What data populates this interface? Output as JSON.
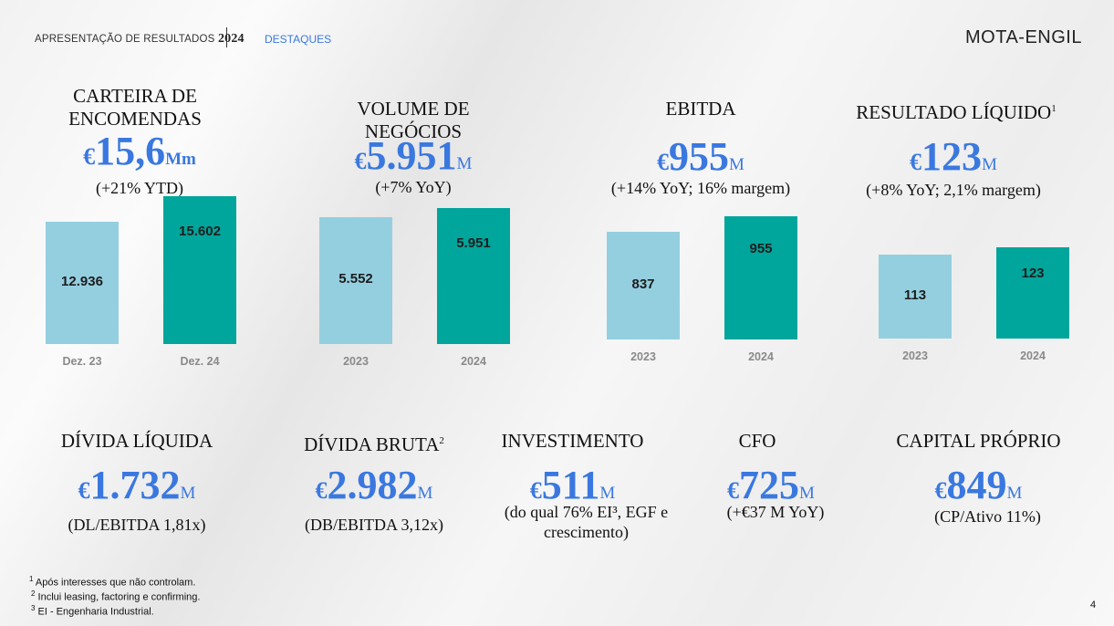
{
  "header": {
    "title": "APRESENTAÇÃO DE RESULTADOS",
    "year": "2024",
    "section": "DESTAQUES",
    "logo": "MOTA-ENGIL"
  },
  "top_kpis": [
    {
      "title_lines": [
        "CARTEIRA DE",
        "ENCOMENDAS"
      ],
      "currency": "€",
      "value": "15,6",
      "unit": "Mm",
      "subtitle": "(+21% YTD)"
    },
    {
      "title_lines": [
        "VOLUME DE",
        "NEGÓCIOS"
      ],
      "currency": "€",
      "value": "5.951",
      "unit": "M",
      "subtitle": "(+7% YoY)"
    },
    {
      "title_lines": [
        "EBITDA"
      ],
      "currency": "€",
      "value": "955",
      "unit": "M",
      "subtitle": "(+14% YoY; 16% margem)"
    },
    {
      "title_lines": [
        "RESULTADO LÍQUIDO"
      ],
      "title_sup": "1",
      "currency": "€",
      "value": "123",
      "unit": "M",
      "subtitle": "(+8% YoY; 2,1% margem)"
    }
  ],
  "chart_data": [
    {
      "type": "bar",
      "categories": [
        "Dez. 23",
        "Dez. 24"
      ],
      "values": [
        12936,
        15602
      ],
      "value_labels": [
        "12.936",
        "15.602"
      ]
    },
    {
      "type": "bar",
      "categories": [
        "2023",
        "2024"
      ],
      "values": [
        5552,
        5951
      ],
      "value_labels": [
        "5.552",
        "5.951"
      ]
    },
    {
      "type": "bar",
      "categories": [
        "2023",
        "2024"
      ],
      "values": [
        837,
        955
      ],
      "value_labels": [
        "837",
        "955"
      ]
    },
    {
      "type": "bar",
      "categories": [
        "2023",
        "2024"
      ],
      "values": [
        113,
        123
      ],
      "value_labels": [
        "113",
        "123"
      ]
    }
  ],
  "bottom_kpis": [
    {
      "title": "DÍVIDA LÍQUIDA",
      "currency": "€",
      "value": "1.732",
      "unit": "M",
      "subtitle_lines": [
        "(DL/EBITDA 1,81x)"
      ]
    },
    {
      "title": "DÍVIDA BRUTA",
      "title_sup": "2",
      "currency": "€",
      "value": "2.982",
      "unit": "M",
      "subtitle_lines": [
        "(DB/EBITDA 3,12x)"
      ]
    },
    {
      "title": "INVESTIMENTO",
      "currency": "€",
      "value": "511",
      "unit": "M",
      "subtitle_lines": [
        "(do qual 76% EI³, EGF e",
        "crescimento)"
      ]
    },
    {
      "title": "CFO",
      "currency": "€",
      "value": "725",
      "unit": "M",
      "subtitle_lines": [
        "(+€37 M YoY)"
      ]
    },
    {
      "title": "CAPITAL PRÓPRIO",
      "currency": "€",
      "value": "849",
      "unit": "M",
      "subtitle_lines": [
        "(CP/Ativo 11%)"
      ]
    }
  ],
  "footnotes": [
    {
      "mark": "1",
      "text": "Após interesses que não controlam."
    },
    {
      "mark": "2",
      "text": "Inclui leasing, factoring e confirming."
    },
    {
      "mark": "3",
      "text": "EI - Engenharia Industrial."
    }
  ],
  "page_number": "4",
  "colors": {
    "accent": "#3a78e0",
    "bar_prev": "#94cfe0",
    "bar_curr": "#00a59c"
  }
}
